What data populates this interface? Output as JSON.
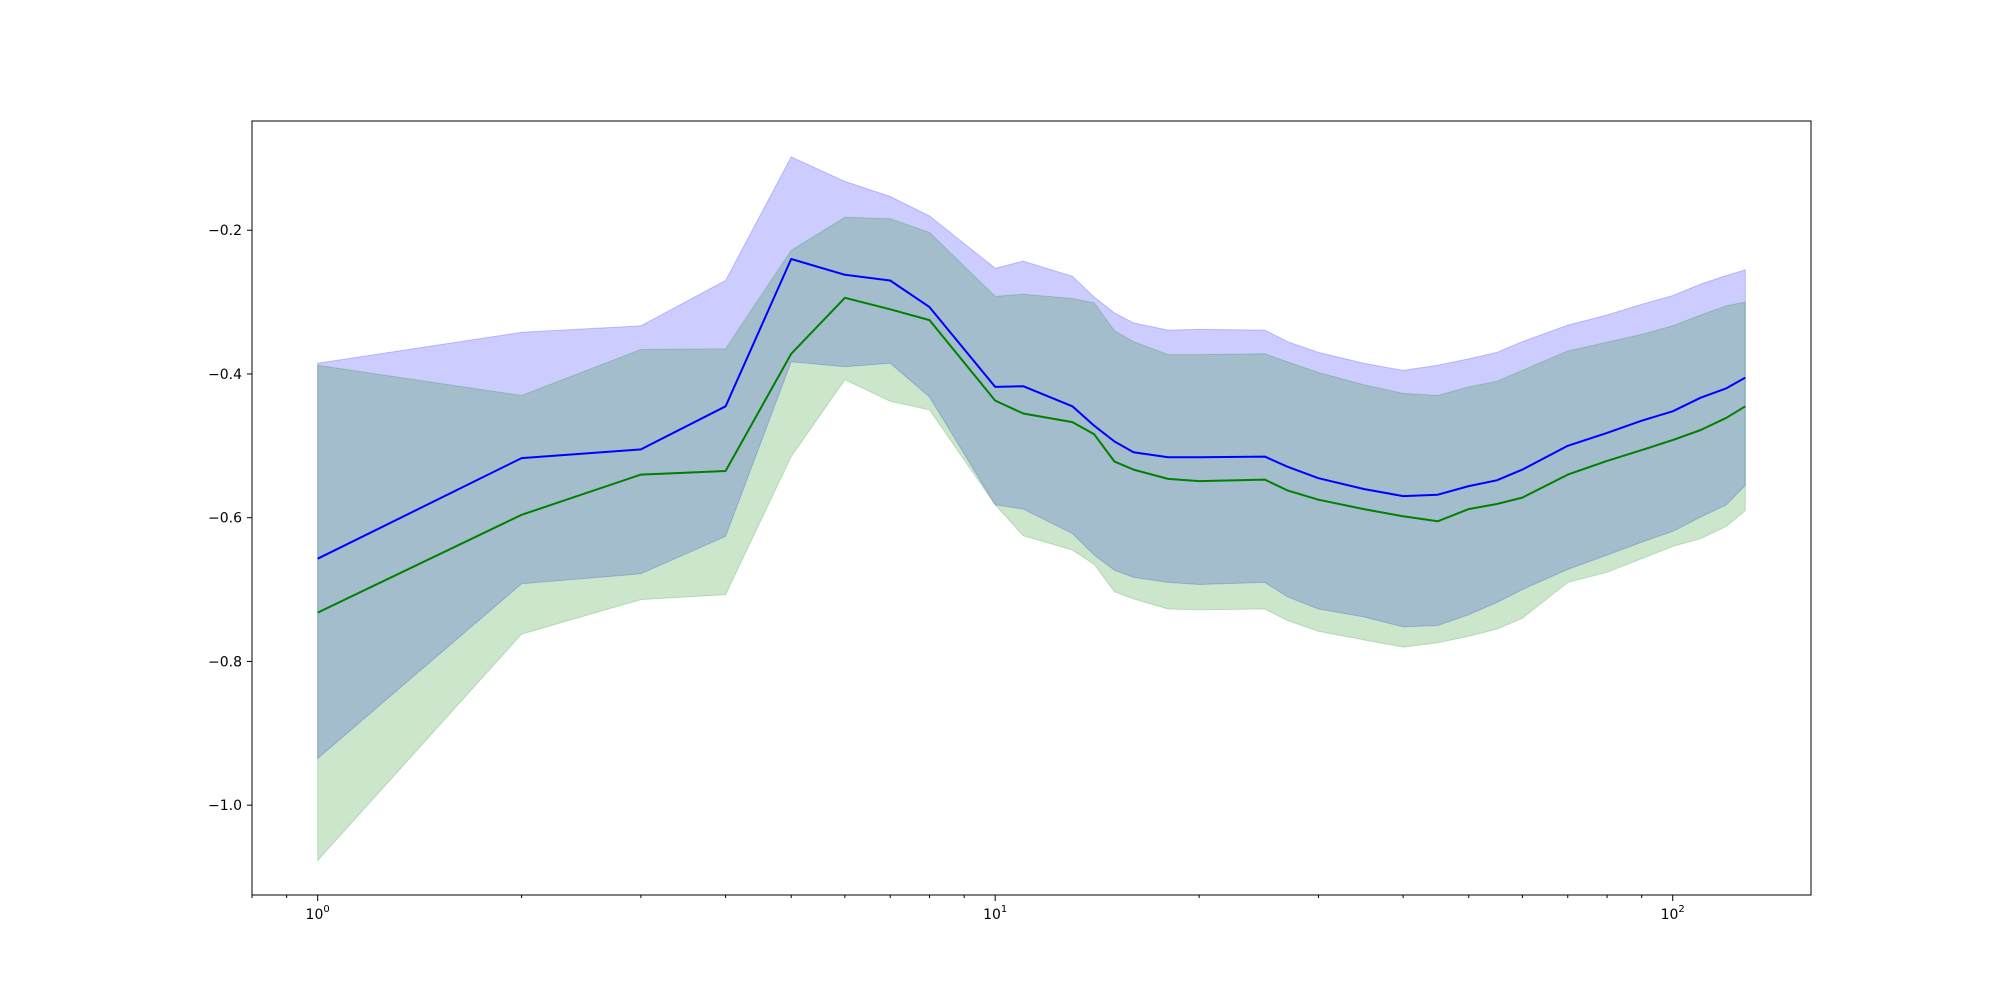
{
  "chart_data": {
    "type": "line",
    "title": "",
    "xlabel": "",
    "ylabel": "",
    "xscale": "log",
    "xlim": [
      0.8,
      160
    ],
    "ylim": [
      -1.125,
      -0.048
    ],
    "grid": false,
    "legend": "none",
    "x_ticks": [
      {
        "value": 1,
        "base": "10",
        "exp": "0"
      },
      {
        "value": 10,
        "base": "10",
        "exp": "1"
      },
      {
        "value": 100,
        "base": "10",
        "exp": "2"
      }
    ],
    "y_ticks": [
      {
        "value": -1.0,
        "label": "−1.0"
      },
      {
        "value": -0.8,
        "label": "−0.8"
      },
      {
        "value": -0.6,
        "label": "−0.6"
      },
      {
        "value": -0.4,
        "label": "−0.4"
      },
      {
        "value": -0.2,
        "label": "−0.2"
      }
    ],
    "series": [
      {
        "color": "#0000ff",
        "band_color": "#0000ff",
        "x": [
          1,
          2,
          3,
          4,
          5,
          6,
          7,
          8,
          10,
          11,
          13,
          14,
          15,
          16,
          18,
          20,
          25,
          27,
          30,
          35,
          40,
          45,
          50,
          55,
          60,
          70,
          80,
          90,
          100,
          110,
          120,
          128
        ],
        "y": [
          -0.657,
          -0.517,
          -0.505,
          -0.445,
          -0.24,
          -0.262,
          -0.27,
          -0.307,
          -0.418,
          -0.417,
          -0.445,
          -0.472,
          -0.494,
          -0.509,
          -0.516,
          -0.516,
          -0.515,
          -0.529,
          -0.545,
          -0.56,
          -0.57,
          -0.568,
          -0.556,
          -0.548,
          -0.533,
          -0.5,
          -0.482,
          -0.465,
          -0.452,
          -0.433,
          -0.42,
          -0.405
        ],
        "upper": [
          -0.385,
          -0.342,
          -0.333,
          -0.27,
          -0.098,
          -0.132,
          -0.153,
          -0.18,
          -0.253,
          -0.243,
          -0.264,
          -0.293,
          -0.315,
          -0.329,
          -0.339,
          -0.338,
          -0.339,
          -0.355,
          -0.37,
          -0.385,
          -0.395,
          -0.388,
          -0.379,
          -0.37,
          -0.355,
          -0.332,
          -0.318,
          -0.303,
          -0.291,
          -0.275,
          -0.263,
          -0.255
        ],
        "lower": [
          -0.935,
          -0.692,
          -0.678,
          -0.626,
          -0.383,
          -0.39,
          -0.385,
          -0.432,
          -0.582,
          -0.588,
          -0.622,
          -0.652,
          -0.673,
          -0.683,
          -0.69,
          -0.693,
          -0.69,
          -0.71,
          -0.727,
          -0.738,
          -0.752,
          -0.75,
          -0.735,
          -0.718,
          -0.7,
          -0.672,
          -0.652,
          -0.634,
          -0.619,
          -0.599,
          -0.582,
          -0.555
        ]
      },
      {
        "color": "#008000",
        "band_color": "#008000",
        "x": [
          1,
          2,
          3,
          4,
          5,
          6,
          7,
          8,
          10,
          11,
          13,
          14,
          15,
          16,
          18,
          20,
          25,
          27,
          30,
          35,
          40,
          45,
          50,
          55,
          60,
          70,
          80,
          90,
          100,
          110,
          120,
          128
        ],
        "y": [
          -0.732,
          -0.596,
          -0.54,
          -0.535,
          -0.372,
          -0.294,
          -0.31,
          -0.325,
          -0.437,
          -0.455,
          -0.467,
          -0.484,
          -0.522,
          -0.533,
          -0.546,
          -0.549,
          -0.547,
          -0.562,
          -0.575,
          -0.588,
          -0.598,
          -0.605,
          -0.588,
          -0.581,
          -0.572,
          -0.54,
          -0.521,
          -0.506,
          -0.492,
          -0.478,
          -0.461,
          -0.445
        ],
        "upper": [
          -0.388,
          -0.43,
          -0.366,
          -0.365,
          -0.228,
          -0.182,
          -0.184,
          -0.203,
          -0.292,
          -0.289,
          -0.295,
          -0.301,
          -0.34,
          -0.355,
          -0.373,
          -0.373,
          -0.372,
          -0.383,
          -0.398,
          -0.415,
          -0.427,
          -0.43,
          -0.418,
          -0.41,
          -0.395,
          -0.368,
          -0.356,
          -0.345,
          -0.333,
          -0.318,
          -0.305,
          -0.3
        ],
        "lower": [
          -1.077,
          -0.762,
          -0.714,
          -0.707,
          -0.515,
          -0.408,
          -0.438,
          -0.45,
          -0.582,
          -0.625,
          -0.645,
          -0.665,
          -0.703,
          -0.713,
          -0.727,
          -0.728,
          -0.727,
          -0.743,
          -0.758,
          -0.77,
          -0.78,
          -0.774,
          -0.765,
          -0.755,
          -0.74,
          -0.69,
          -0.676,
          -0.657,
          -0.64,
          -0.629,
          -0.612,
          -0.59
        ]
      }
    ]
  }
}
